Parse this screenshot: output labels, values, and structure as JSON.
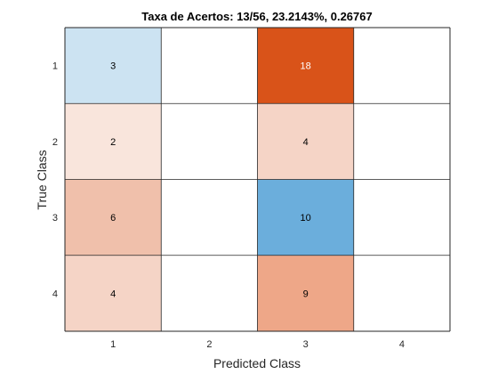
{
  "chart_data": {
    "type": "heatmap",
    "title": "Taxa de Acertos: 13/56, 23.2143%, 0.26767",
    "xlabel": "Predicted Class",
    "ylabel": "True Class",
    "x_categories": [
      "1",
      "2",
      "3",
      "4"
    ],
    "y_categories": [
      "1",
      "2",
      "3",
      "4"
    ],
    "matrix": [
      [
        3,
        0,
        18,
        0
      ],
      [
        2,
        0,
        4,
        0
      ],
      [
        6,
        0,
        10,
        0
      ],
      [
        4,
        0,
        9,
        0
      ]
    ],
    "cells": [
      {
        "row": 0,
        "col": 0,
        "value": "3",
        "color": "#CCE3F2",
        "text_color": "#000000"
      },
      {
        "row": 0,
        "col": 2,
        "value": "18",
        "color": "#D95319",
        "text_color": "#FFFFFF"
      },
      {
        "row": 1,
        "col": 0,
        "value": "2",
        "color": "#F9E5DC",
        "text_color": "#000000"
      },
      {
        "row": 1,
        "col": 2,
        "value": "4",
        "color": "#F5D4C6",
        "text_color": "#000000"
      },
      {
        "row": 2,
        "col": 0,
        "value": "6",
        "color": "#F0C0AB",
        "text_color": "#000000"
      },
      {
        "row": 2,
        "col": 2,
        "value": "10",
        "color": "#6BAEDC",
        "text_color": "#000000"
      },
      {
        "row": 3,
        "col": 0,
        "value": "4",
        "color": "#F5D4C6",
        "text_color": "#000000"
      },
      {
        "row": 3,
        "col": 2,
        "value": "9",
        "color": "#EEA788",
        "text_color": "#000000"
      }
    ],
    "empty_color": "#FFFFFF",
    "grid": true
  }
}
